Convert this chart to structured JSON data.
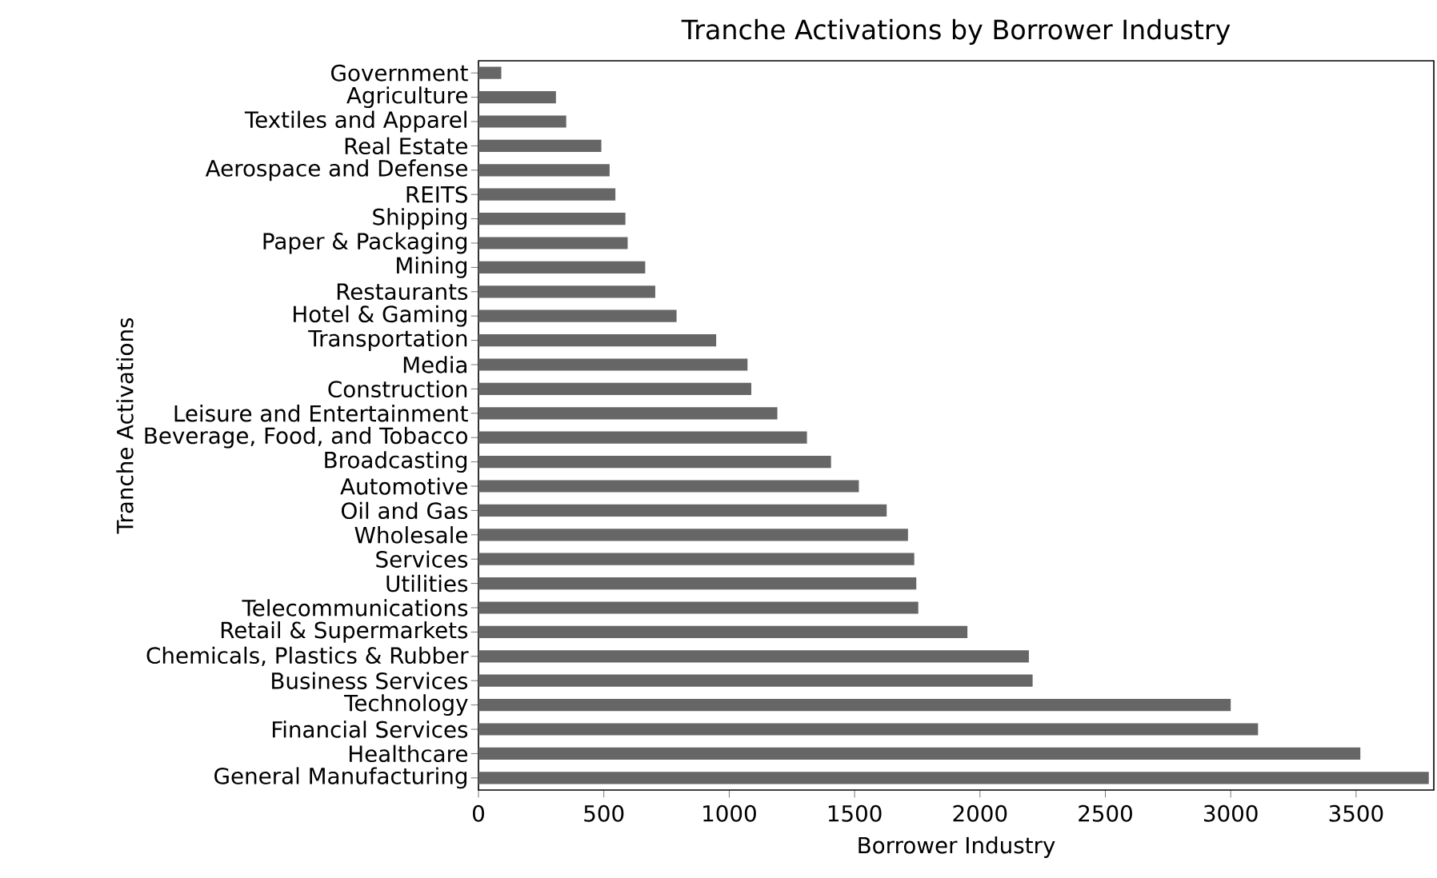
{
  "chart_data": {
    "type": "bar",
    "orientation": "horizontal",
    "title": "Tranche Activations by Borrower Industry",
    "xlabel": "Borrower Industry",
    "ylabel": "Tranche Activations",
    "categories": [
      "Government",
      "Agriculture",
      "Textiles and Apparel",
      "Real Estate",
      "Aerospace and Defense",
      "REITS",
      "Shipping",
      "Paper & Packaging",
      "Mining",
      "Restaurants",
      "Hotel & Gaming",
      "Transportation",
      "Media",
      "Construction",
      "Leisure and Entertainment",
      "Beverage, Food, and Tobacco",
      "Broadcasting",
      "Automotive",
      "Oil and Gas",
      "Wholesale",
      "Services",
      "Utilities",
      "Telecommunications",
      "Retail & Supermarkets",
      "Chemicals, Plastics & Rubber",
      "Business Services",
      "Technology",
      "Financial Services",
      "Healthcare",
      "General Manufacturing"
    ],
    "values": [
      91,
      309,
      350,
      490,
      523,
      546,
      586,
      595,
      665,
      705,
      790,
      948,
      1073,
      1088,
      1192,
      1310,
      1406,
      1517,
      1628,
      1713,
      1738,
      1746,
      1754,
      1950,
      2195,
      2210,
      3000,
      3109,
      3517,
      3790
    ],
    "color": "#666666",
    "xlim": [
      0,
      3810
    ],
    "xticks": [
      0,
      500,
      1000,
      1500,
      2000,
      2500,
      3000,
      3500
    ]
  }
}
